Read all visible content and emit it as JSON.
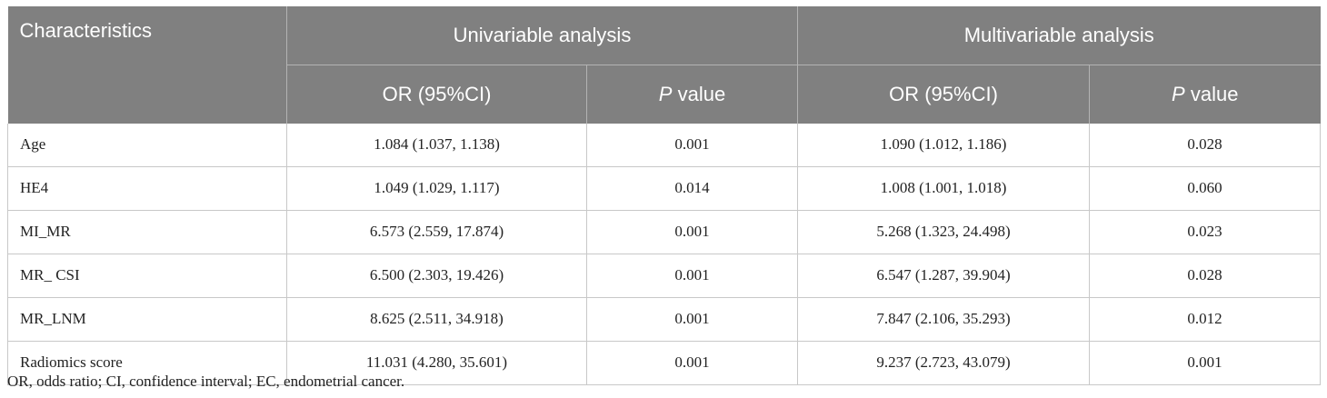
{
  "table": {
    "header": {
      "characteristics": "Characteristics",
      "univariable": "Univariable analysis",
      "multivariable": "Multivariable analysis",
      "or_label": "OR (95%CI)",
      "p_italic": "P",
      "p_rest": " value"
    },
    "rows": [
      {
        "name": "Age",
        "uni_or": "1.084 (1.037, 1.138)",
        "uni_p": "0.001",
        "multi_or": "1.090 (1.012, 1.186)",
        "multi_p": "0.028"
      },
      {
        "name": "HE4",
        "uni_or": "1.049 (1.029, 1.117)",
        "uni_p": "0.014",
        "multi_or": "1.008 (1.001, 1.018)",
        "multi_p": "0.060"
      },
      {
        "name": "MI_MR",
        "uni_or": "6.573 (2.559, 17.874)",
        "uni_p": "0.001",
        "multi_or": "5.268 (1.323, 24.498)",
        "multi_p": "0.023"
      },
      {
        "name": "MR_ CSI",
        "uni_or": "6.500 (2.303, 19.426)",
        "uni_p": "0.001",
        "multi_or": "6.547 (1.287, 39.904)",
        "multi_p": "0.028"
      },
      {
        "name": "MR_LNM",
        "uni_or": "8.625 (2.511, 34.918)",
        "uni_p": "0.001",
        "multi_or": "7.847 (2.106, 35.293)",
        "multi_p": "0.012"
      },
      {
        "name": "Radiomics score",
        "uni_or": "11.031 (4.280, 35.601)",
        "uni_p": "0.001",
        "multi_or": "9.237 (2.723, 43.079)",
        "multi_p": "0.001"
      }
    ],
    "footnote": "OR, odds ratio; CI, confidence interval; EC, endometrial cancer."
  }
}
